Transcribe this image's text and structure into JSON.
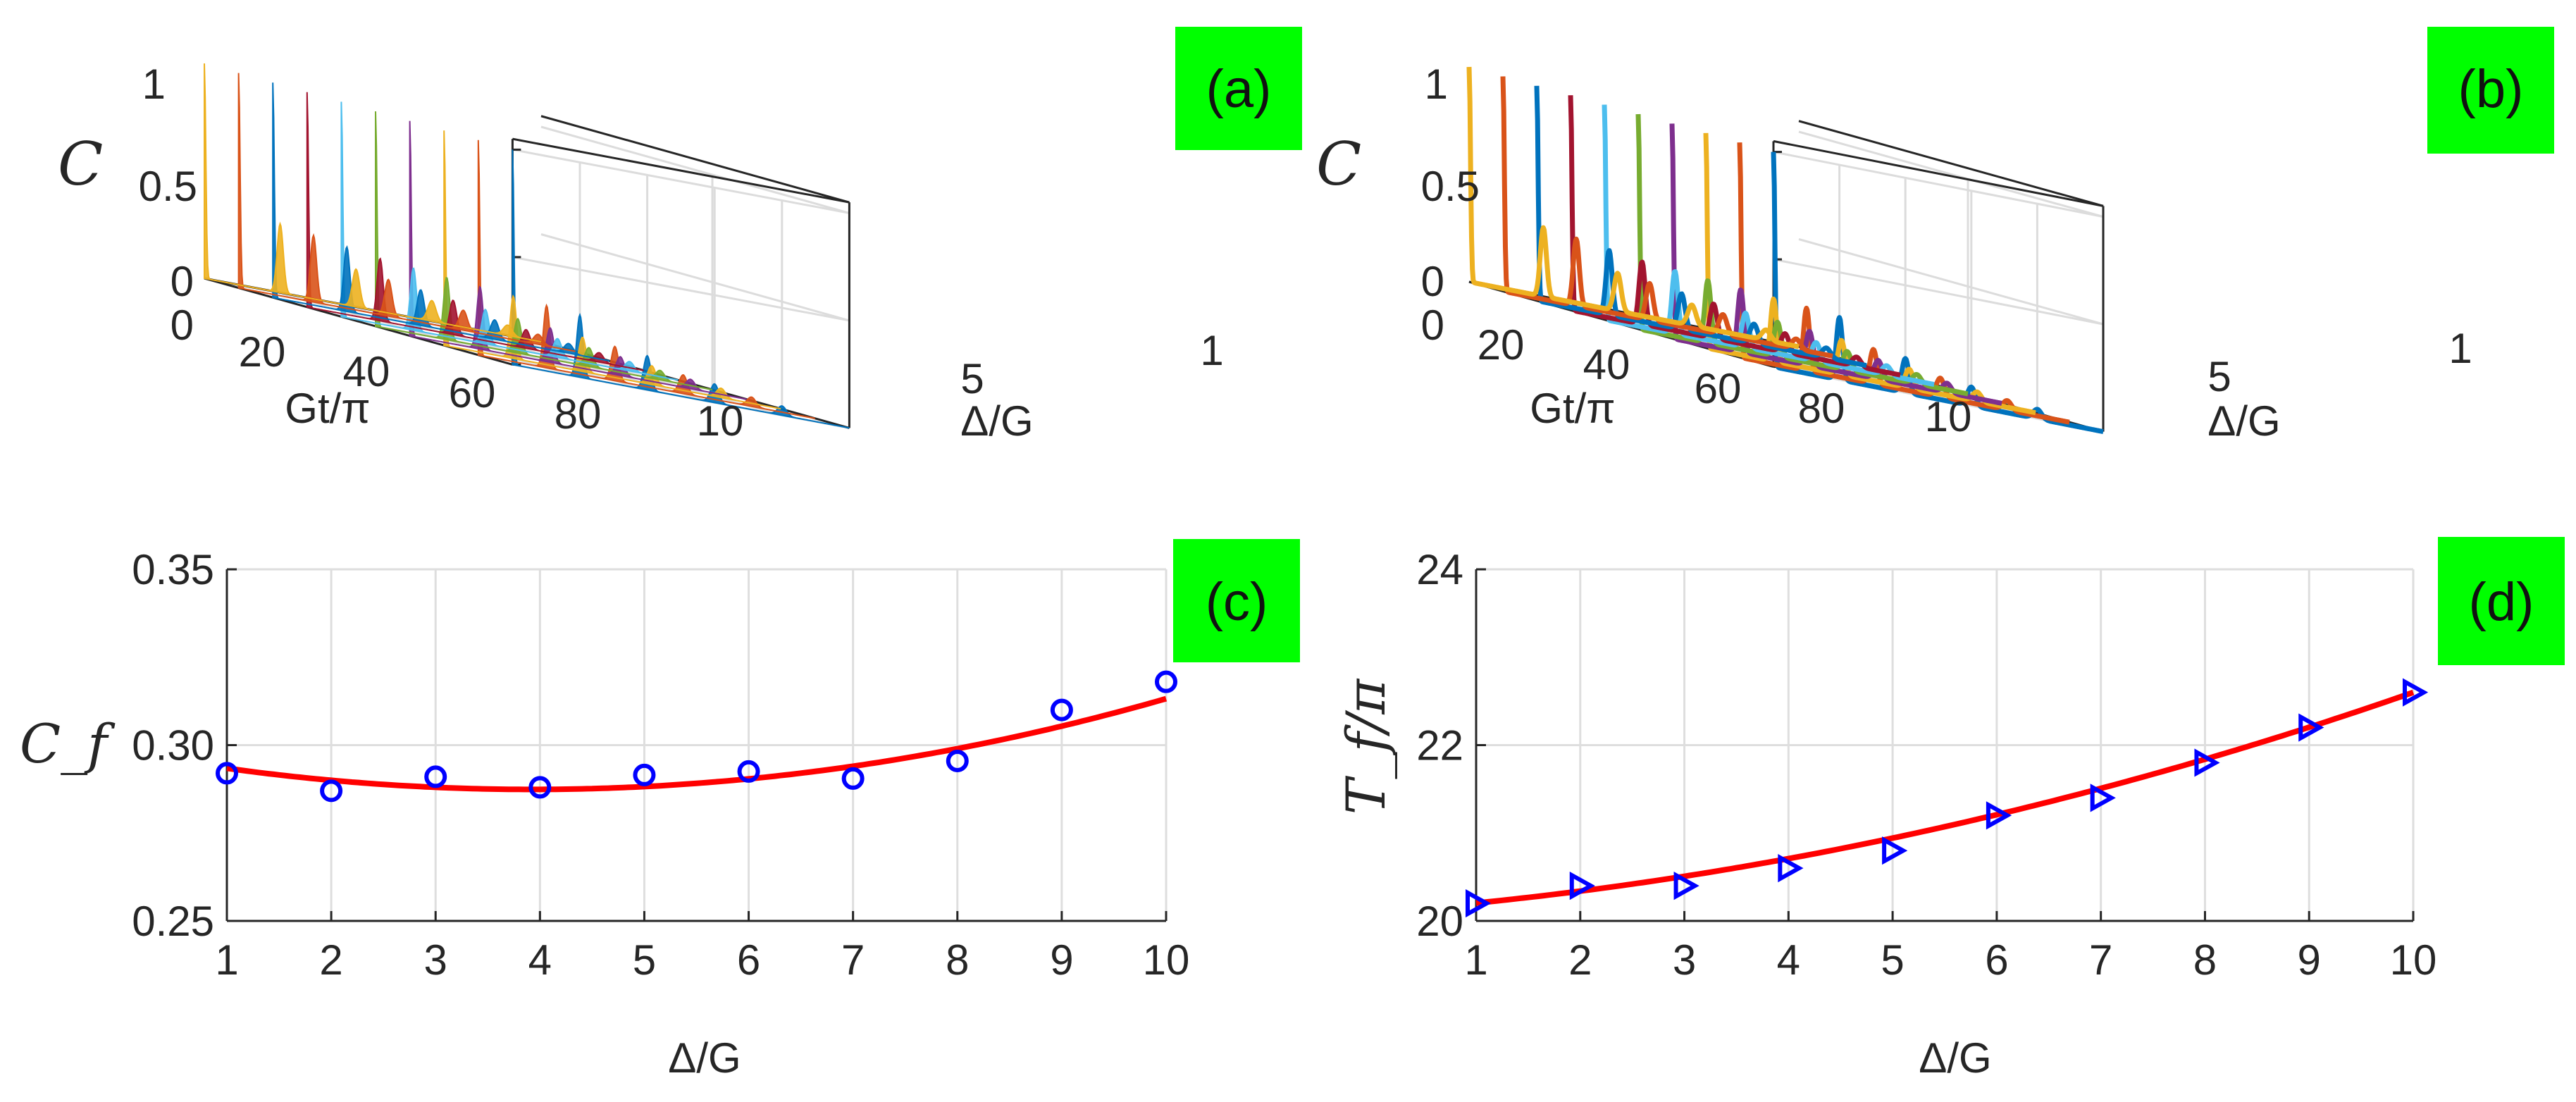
{
  "figure": {
    "panels": [
      {
        "id": "a",
        "label": "(a)"
      },
      {
        "id": "b",
        "label": "(b)"
      },
      {
        "id": "c",
        "label": "(c)"
      },
      {
        "id": "d",
        "label": "(d)"
      }
    ],
    "badge_color": "#00ff00",
    "fit_color": "#ff0000",
    "marker_color": "#0000ff"
  },
  "chart_data": [
    {
      "id": "a",
      "type": "line3d",
      "zlabel": "C",
      "xlabel": "Gt/π",
      "ylabel": "Δ/G",
      "ztick_labels": [
        "0",
        "0.5",
        "1"
      ],
      "xtick_labels": [
        "0",
        "20",
        "40",
        "60",
        "80"
      ],
      "ytick_labels": [
        "1",
        "5",
        "10"
      ],
      "series_colors": [
        "#0072BD",
        "#D95319",
        "#EDB120",
        "#7E2F8E",
        "#77AC30",
        "#4DBEEE",
        "#A2142F",
        "#0072BD",
        "#D95319",
        "#EDB120"
      ],
      "delta_values": [
        1,
        2,
        3,
        4,
        5,
        6,
        7,
        8,
        9,
        10
      ],
      "peak_height_initial": 1.0,
      "second_peak": [
        0.29,
        0.29,
        0.29,
        0.29,
        0.29,
        0.29,
        0.29,
        0.3,
        0.31,
        0.32
      ],
      "zlim": [
        0,
        1
      ]
    },
    {
      "id": "b",
      "type": "line3d",
      "zlabel": "C",
      "xlabel": "Gt/π",
      "ylabel": "Δ/G",
      "ztick_labels": [
        "0",
        "0.5",
        "1"
      ],
      "xtick_labels": [
        "0",
        "20",
        "40",
        "60",
        "80"
      ],
      "ytick_labels": [
        "1",
        "5",
        "10"
      ],
      "series_colors": [
        "#0072BD",
        "#D95319",
        "#EDB120",
        "#7E2F8E",
        "#77AC30",
        "#4DBEEE",
        "#A2142F",
        "#0072BD",
        "#D95319",
        "#EDB120"
      ],
      "delta_values": [
        1,
        2,
        3,
        4,
        5,
        6,
        7,
        8,
        9,
        10
      ],
      "peak_height_initial": 1.0,
      "second_peak": [
        0.29,
        0.29,
        0.29,
        0.29,
        0.29,
        0.29,
        0.29,
        0.3,
        0.31,
        0.32
      ],
      "zlim": [
        0,
        1
      ]
    },
    {
      "id": "c",
      "type": "scatter",
      "ylabel": "C_f",
      "xlabel": "Δ/G",
      "x": [
        1,
        2,
        3,
        4,
        5,
        6,
        7,
        8,
        9,
        10
      ],
      "y": [
        0.292,
        0.287,
        0.291,
        0.288,
        0.2915,
        0.2925,
        0.2905,
        0.2955,
        0.31,
        0.318
      ],
      "fit_coeffs": [
        0.2982,
        -0.0055,
        0.0007
      ],
      "xlim": [
        1,
        10
      ],
      "ylim": [
        0.25,
        0.35
      ],
      "xticks": [
        "1",
        "2",
        "3",
        "4",
        "5",
        "6",
        "7",
        "8",
        "9",
        "10"
      ],
      "yticks": [
        "0.25",
        "0.30",
        "0.35"
      ],
      "grid": true
    },
    {
      "id": "d",
      "type": "scatter",
      "ylabel": "T_f/π",
      "xlabel": "Δ/G",
      "x": [
        1,
        2,
        3,
        4,
        5,
        6,
        7,
        8,
        9,
        10
      ],
      "y": [
        20.2,
        20.4,
        20.4,
        20.6,
        20.8,
        21.2,
        21.4,
        21.8,
        22.2,
        22.6
      ],
      "fit_coeffs": [
        20.1,
        0.087,
        0.0163
      ],
      "xlim": [
        1,
        10
      ],
      "ylim": [
        20,
        24
      ],
      "xticks": [
        "1",
        "2",
        "3",
        "4",
        "5",
        "6",
        "7",
        "8",
        "9",
        "10"
      ],
      "yticks": [
        "20",
        "22",
        "24"
      ],
      "grid": true
    }
  ]
}
